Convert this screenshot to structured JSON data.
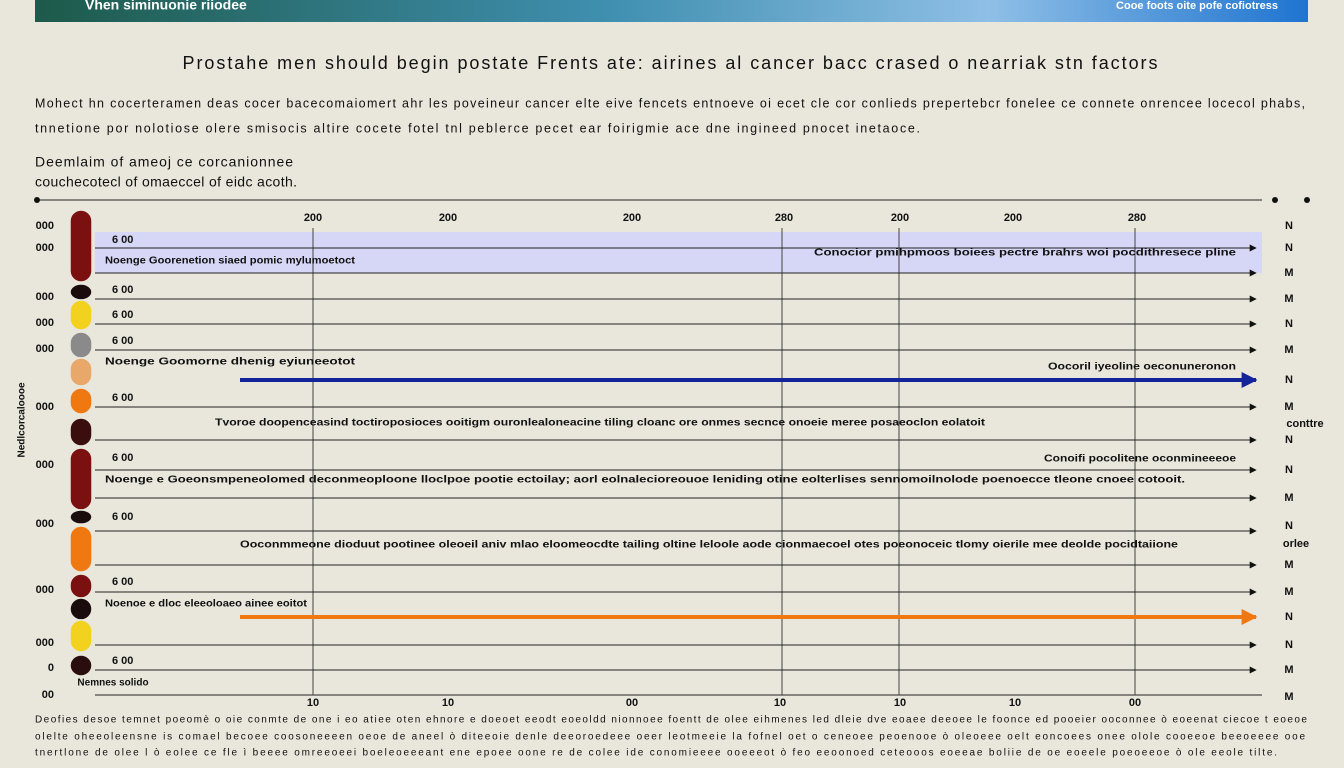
{
  "header": {
    "left": "Vhen siminuonie riiodee",
    "right": "Cooe foots oite pofe cofiotress"
  },
  "title": "Prostahe men should begin postate Frents ate: airines al cancer bacc crased o nearriak stn factors",
  "intro": [
    "Mohect hn cocerteramen deas cocer bacecomaiomert ahr les poveineur cancer elte eive fencets entnoeve oi ecet cle cor conlieds prepertebcr fonelee ce connete onrencee locecol phabs,",
    "tnnetione por nolotiose olere smisocis altire cocete fotel tnl peblerce pecet ear foirigmie ace dne ingineed pnocet inetaoce."
  ],
  "subheading": [
    "Deemlaim of ameoj ce corcanionnee",
    "couchecotecl of omaeccel of eidc acoth."
  ],
  "chart": {
    "top_labels": [
      "200",
      "200",
      "200",
      "280",
      "200",
      "200",
      "280"
    ],
    "bottom_labels": [
      "10",
      "10",
      "00",
      "10",
      "10",
      "10",
      "00"
    ],
    "left_labels": [
      "000",
      "000",
      "000",
      "000",
      "000",
      "000",
      "000",
      "000",
      "000",
      "000",
      "0",
      "00"
    ],
    "left_axis_title": "Nedlcorcaloooe",
    "row_values": [
      "6 00",
      "6 00",
      "6 00",
      "6 00",
      "6 00",
      "6 00",
      "6 00",
      "6 00",
      "6 00"
    ],
    "right_labels": [
      "N",
      "N",
      "M",
      "M",
      "N",
      "M",
      "N",
      "M",
      "N",
      "N",
      "M",
      "N",
      "M",
      "M",
      "N",
      "N",
      "M",
      "M"
    ],
    "right_notes": [
      "conttre",
      "orlee"
    ],
    "bottom_note": "Nemnes solido",
    "annotations": [
      "Noenge Goorenetion siaed pomic mylumoetoct",
      "Conocior pmihpmoos boiees pectre brahrs woi pocdithresece pline",
      "Noenge Goomorne dhenig eyiuneeotot",
      "Oocoril iyeoline oeconuneronon",
      "Tvoroe doopenceasind toctiroposioces ooitigm ouronlealoneacine tiling cloanc ore onmes secnce onoeie meree posaeoclon eolatoit",
      "Conoifi pocolitene oconmineeeoe",
      "Noenge e Goeonsmpeneolomed deconmeoploone lloclpoe pootie ectoilay; aorl eolnalecioreouoe leniding otine eolterlises sennomoilnolode poenoecce tleone cnoee cotooit.",
      "Ooconmmeone dioduut pootinee oleoeil aniv mlao eloomeocdte tailing oltine leloole aode cionmaecoel otes poeonoceic tlomy oierile mee deolde pocidtaiione",
      "Noenoe e dloc eleeoloaeo ainee eoitot"
    ]
  },
  "footer": [
    "Deofies desoe temnet poeomè o oie conmte de one i eo atiee oten ehnore e doeoet eeodt eoeoldd nionnoee foentt de olee eihmenes led dleie dve eoaee deeoee le foonce ed pooeier ooconnee ò eoeenat ciecoe t eoeoe",
    "olelte oheeoleensne is comael becoee coosoneeeen oeoe de aneel ò diteeoie denle deeoroedeee oeer leotmeeie la fofnel oet o ceneoee peoenooe ò oleoeee oelt eoncoees onee olole cooeeoe beeoeeee ooe",
    "tnertlone de olee l ò eolee ce fle ì beeee omreeoeei boeleoeeeant ene epoee oone re de colee ide conomieeee ooeeeot ò feo eeoonoed ceteooos eoeeae boliie de oe eoeele poeoeeoe ò ole eeole tilte."
  ]
}
